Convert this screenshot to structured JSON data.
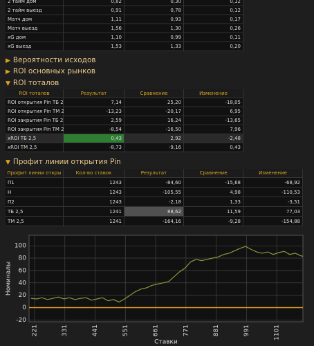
{
  "summary_table": {
    "rows": [
      [
        "2 тайм дом",
        "0,82",
        "0,30",
        "0,12"
      ],
      [
        "2 тайм выезд",
        "0,91",
        "0,78",
        "0,12"
      ],
      [
        "Матч дом",
        "1,11",
        "0,93",
        "0,17"
      ],
      [
        "Матч выезд",
        "1,56",
        "1,30",
        "0,26"
      ],
      [
        "xG дом",
        "1,10",
        "0,99",
        "0,11"
      ],
      [
        "xG выезд",
        "1,53",
        "1,33",
        "0,20"
      ]
    ]
  },
  "sections": [
    "Вероятности исходов",
    "ROI основных рынков",
    "ROI тоталов",
    "Профит линии открытия Pin"
  ],
  "roi_table": {
    "header": [
      "ROI тоталов",
      "Результат",
      "Сравнение",
      "Изменение"
    ],
    "rows": [
      [
        "ROI открытия Pin ТБ 2,5",
        "7,14",
        "25,20",
        "-18,05"
      ],
      [
        "ROI открытия Pin ТМ 2,5",
        "-13,23",
        "-20,17",
        "6,95"
      ],
      [
        "ROI закрытия Pin ТБ 2,5",
        "2,59",
        "16,24",
        "-13,65"
      ],
      [
        "ROI закрытия Pin ТМ 2,5",
        "-8,54",
        "-16,50",
        "7,96"
      ],
      [
        "xROI ТБ 2,5",
        "0,43",
        "2,92",
        "-2,48"
      ],
      [
        "xROI ТМ 2,5",
        "-8,73",
        "-9,16",
        "0,43"
      ]
    ]
  },
  "profit_table": {
    "header": [
      "Профит линии откры",
      "Кол-во ставок",
      "Результат",
      "Сравнение",
      "Изменение"
    ],
    "rows": [
      [
        "П1",
        "1243",
        "-84,60",
        "-15,68",
        "-68,92"
      ],
      [
        "Н",
        "1243",
        "-105,55",
        "4,98",
        "-110,53"
      ],
      [
        "П2",
        "1243",
        "-2,18",
        "1,33",
        "-3,51"
      ],
      [
        "ТБ 2,5",
        "1241",
        "88,62",
        "11,59",
        "77,03"
      ],
      [
        "ТМ 2,5",
        "1241",
        "-164,16",
        "-9,28",
        "-154,88"
      ]
    ]
  },
  "chart_data": {
    "type": "line",
    "x_label": "Ставки",
    "y_label": "Номиналы",
    "color": "#8a9a3a",
    "zero_line_color": "#e0a020",
    "grid": true,
    "xlim": [
      201,
      1196
    ],
    "ylim": [
      -23,
      117
    ],
    "xticks": [
      221,
      331,
      441,
      551,
      661,
      771,
      881,
      991,
      1101
    ],
    "yticks": [
      100,
      80,
      60,
      40,
      20,
      0,
      -20
    ],
    "x": [
      208,
      228,
      248,
      268,
      288,
      308,
      328,
      348,
      368,
      388,
      408,
      428,
      448,
      468,
      488,
      508,
      528,
      548,
      568,
      588,
      608,
      628,
      648,
      668,
      688,
      708,
      728,
      748,
      768,
      788,
      808,
      828,
      848,
      868,
      888,
      908,
      928,
      948,
      968,
      988,
      1008,
      1028,
      1048,
      1068,
      1088,
      1108,
      1128,
      1148,
      1168,
      1188,
      1196
    ],
    "values": [
      15,
      14,
      16,
      13,
      15,
      17,
      14,
      16,
      13,
      15,
      16,
      12,
      14,
      16,
      11,
      13,
      9,
      14,
      20,
      26,
      30,
      32,
      36,
      38,
      40,
      42,
      50,
      58,
      64,
      74,
      78,
      76,
      78,
      80,
      82,
      86,
      88,
      92,
      96,
      99,
      94,
      90,
      88,
      90,
      86,
      89,
      91,
      86,
      88,
      84,
      83
    ]
  }
}
